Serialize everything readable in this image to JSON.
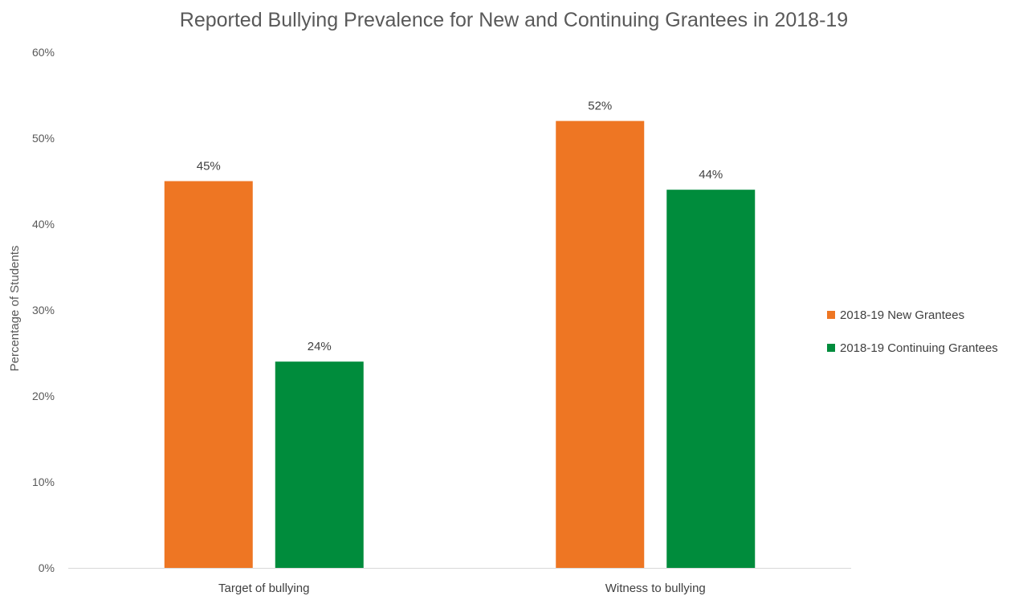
{
  "chart_data": {
    "type": "bar",
    "title": "Reported Bullying Prevalence for New and Continuing Grantees in 2018-19",
    "xlabel": "",
    "ylabel": "Percentage of Students",
    "categories": [
      "Target of bullying",
      "Witness to bullying"
    ],
    "series": [
      {
        "name": "2018-19 New Grantees",
        "color": "#ee7623",
        "values": [
          45,
          52
        ],
        "labels": [
          "45%",
          "52%"
        ]
      },
      {
        "name": "2018-19 Continuing Grantees",
        "color": "#008c3c",
        "values": [
          24,
          44
        ],
        "labels": [
          "24%",
          "44%"
        ]
      }
    ],
    "ylim": [
      0,
      60
    ],
    "yticks": [
      0,
      10,
      20,
      30,
      40,
      50,
      60
    ],
    "ytick_labels": [
      "0%",
      "10%",
      "20%",
      "30%",
      "40%",
      "50%",
      "60%"
    ],
    "grid": false,
    "legend_position": "right",
    "axis_color": "#d9d9d9"
  }
}
